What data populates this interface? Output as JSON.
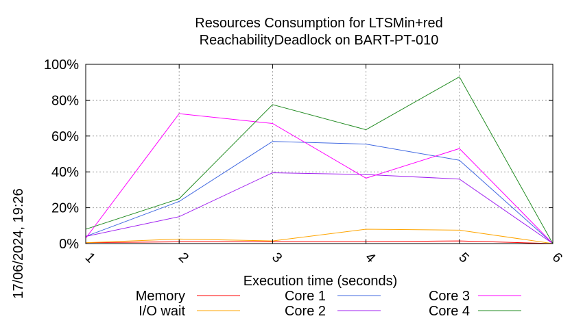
{
  "chart_data": {
    "type": "line",
    "title": "Resources Consumption for LTSMin+red",
    "subtitle": "ReachabilityDeadlock on BART-PT-010",
    "xlabel": "Execution time (seconds)",
    "ylabel": "",
    "timestamp": "17/06/2024, 19:26",
    "xlim": [
      1,
      6
    ],
    "ylim": [
      0,
      100
    ],
    "x_ticks": [
      "1",
      "2",
      "3",
      "4",
      "5",
      "6"
    ],
    "y_ticks": [
      "0%",
      "20%",
      "40%",
      "60%",
      "80%",
      "100%"
    ],
    "y_tick_values": [
      0,
      20,
      40,
      60,
      80,
      100
    ],
    "grid": true,
    "legend_position": "bottom",
    "x": [
      1,
      2,
      3,
      4,
      5,
      6
    ],
    "series": [
      {
        "name": "Memory",
        "color": "#ff0000",
        "values": [
          0.5,
          1,
          1,
          1,
          1.5,
          0
        ]
      },
      {
        "name": "I/O wait",
        "color": "#ffa500",
        "values": [
          0.5,
          2.5,
          1.5,
          8,
          7.5,
          0
        ]
      },
      {
        "name": "Core 1",
        "color": "#4169e1",
        "values": [
          4,
          23.5,
          57,
          55.5,
          46.5,
          0
        ]
      },
      {
        "name": "Core 2",
        "color": "#a020f0",
        "values": [
          4,
          15,
          39.5,
          38.5,
          36,
          0
        ]
      },
      {
        "name": "Core 3",
        "color": "#ff00ff",
        "values": [
          3,
          72.5,
          67,
          36.5,
          53,
          0
        ]
      },
      {
        "name": "Core 4",
        "color": "#228b22",
        "values": [
          8,
          25,
          77.5,
          63.5,
          93,
          0
        ]
      }
    ]
  }
}
